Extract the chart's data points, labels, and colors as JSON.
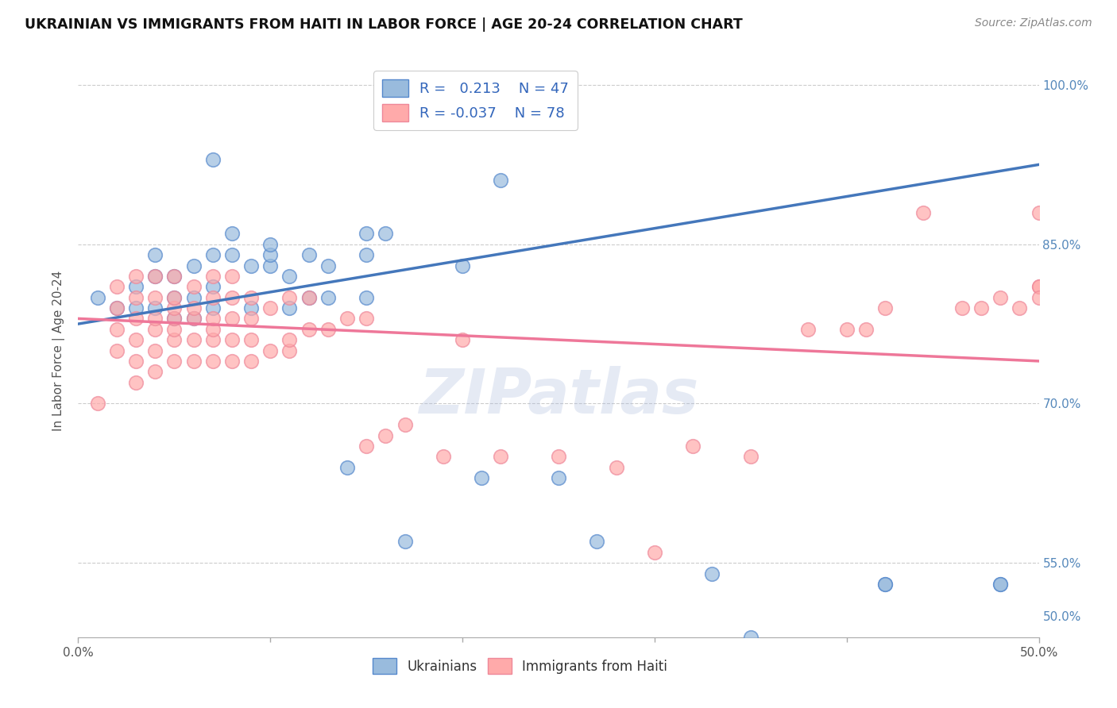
{
  "title": "UKRAINIAN VS IMMIGRANTS FROM HAITI IN LABOR FORCE | AGE 20-24 CORRELATION CHART",
  "source": "Source: ZipAtlas.com",
  "ylabel": "In Labor Force | Age 20-24",
  "xlim": [
    0.0,
    0.5
  ],
  "ylim": [
    0.48,
    1.02
  ],
  "ytick_labels": [
    "100.0%",
    "85.0%",
    "70.0%",
    "55.0%",
    "50.0%"
  ],
  "ytick_values": [
    1.0,
    0.85,
    0.7,
    0.55,
    0.5
  ],
  "ytick_grid": [
    1.0,
    0.85,
    0.7,
    0.55
  ],
  "xtick_labels": [
    "0.0%",
    "50.0%"
  ],
  "xtick_values": [
    0.0,
    0.5
  ],
  "blue_R": 0.213,
  "blue_N": 47,
  "pink_R": -0.037,
  "pink_N": 78,
  "blue_color": "#99BBDD",
  "pink_color": "#FFAAAA",
  "blue_edge_color": "#5588CC",
  "pink_edge_color": "#EE8899",
  "blue_line_color": "#4477BB",
  "pink_line_color": "#EE7799",
  "watermark_color": "#AABBDD",
  "legend_labels": [
    "Ukrainians",
    "Immigrants from Haiti"
  ],
  "blue_line_x": [
    0.0,
    0.5
  ],
  "blue_line_y": [
    0.775,
    0.925
  ],
  "pink_line_x": [
    0.0,
    0.5
  ],
  "pink_line_y": [
    0.78,
    0.74
  ],
  "blue_scatter_x": [
    0.01,
    0.02,
    0.03,
    0.03,
    0.04,
    0.04,
    0.04,
    0.05,
    0.05,
    0.05,
    0.06,
    0.06,
    0.06,
    0.07,
    0.07,
    0.07,
    0.07,
    0.08,
    0.08,
    0.09,
    0.09,
    0.1,
    0.1,
    0.1,
    0.11,
    0.11,
    0.12,
    0.12,
    0.13,
    0.13,
    0.14,
    0.15,
    0.15,
    0.15,
    0.16,
    0.17,
    0.2,
    0.21,
    0.22,
    0.25,
    0.27,
    0.33,
    0.35,
    0.42,
    0.42,
    0.48,
    0.48
  ],
  "blue_scatter_y": [
    0.8,
    0.79,
    0.81,
    0.79,
    0.79,
    0.82,
    0.84,
    0.78,
    0.8,
    0.82,
    0.78,
    0.8,
    0.83,
    0.79,
    0.81,
    0.84,
    0.93,
    0.84,
    0.86,
    0.79,
    0.83,
    0.83,
    0.84,
    0.85,
    0.79,
    0.82,
    0.8,
    0.84,
    0.8,
    0.83,
    0.64,
    0.8,
    0.84,
    0.86,
    0.86,
    0.57,
    0.83,
    0.63,
    0.91,
    0.63,
    0.57,
    0.54,
    0.48,
    0.53,
    0.53,
    0.53,
    0.53
  ],
  "pink_scatter_x": [
    0.01,
    0.02,
    0.02,
    0.02,
    0.02,
    0.03,
    0.03,
    0.03,
    0.03,
    0.03,
    0.03,
    0.04,
    0.04,
    0.04,
    0.04,
    0.04,
    0.04,
    0.05,
    0.05,
    0.05,
    0.05,
    0.05,
    0.05,
    0.05,
    0.06,
    0.06,
    0.06,
    0.06,
    0.06,
    0.07,
    0.07,
    0.07,
    0.07,
    0.07,
    0.07,
    0.08,
    0.08,
    0.08,
    0.08,
    0.08,
    0.09,
    0.09,
    0.09,
    0.09,
    0.1,
    0.1,
    0.11,
    0.11,
    0.11,
    0.12,
    0.12,
    0.13,
    0.14,
    0.15,
    0.15,
    0.16,
    0.17,
    0.19,
    0.2,
    0.22,
    0.25,
    0.28,
    0.3,
    0.32,
    0.35,
    0.38,
    0.4,
    0.41,
    0.42,
    0.44,
    0.46,
    0.47,
    0.48,
    0.49,
    0.5,
    0.5,
    0.5,
    0.5
  ],
  "pink_scatter_y": [
    0.7,
    0.75,
    0.77,
    0.79,
    0.81,
    0.72,
    0.74,
    0.76,
    0.78,
    0.8,
    0.82,
    0.73,
    0.75,
    0.77,
    0.78,
    0.8,
    0.82,
    0.74,
    0.76,
    0.77,
    0.78,
    0.79,
    0.8,
    0.82,
    0.74,
    0.76,
    0.78,
    0.79,
    0.81,
    0.74,
    0.76,
    0.77,
    0.78,
    0.8,
    0.82,
    0.74,
    0.76,
    0.78,
    0.8,
    0.82,
    0.74,
    0.76,
    0.78,
    0.8,
    0.75,
    0.79,
    0.75,
    0.76,
    0.8,
    0.77,
    0.8,
    0.77,
    0.78,
    0.78,
    0.66,
    0.67,
    0.68,
    0.65,
    0.76,
    0.65,
    0.65,
    0.64,
    0.56,
    0.66,
    0.65,
    0.77,
    0.77,
    0.77,
    0.79,
    0.88,
    0.79,
    0.79,
    0.8,
    0.79,
    0.81,
    0.81,
    0.88,
    0.8
  ]
}
